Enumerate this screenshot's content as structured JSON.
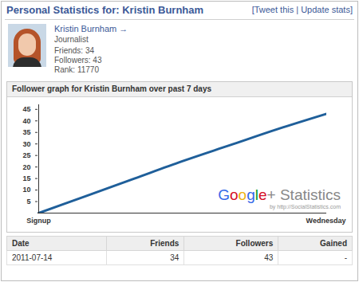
{
  "header": {
    "title": "Personal Statistics for: Kristin Burnham",
    "links": "[Tweet this | Update stats]"
  },
  "profile": {
    "name": "Kristin Burnham →",
    "occupation": "Journalist",
    "stats": [
      "Friends: 34",
      "Followers: 43",
      "Rank: 11770"
    ]
  },
  "chart_data": {
    "type": "line",
    "title": "Follower graph for Kristin Burnham over past 7 days",
    "categories": [
      "Signup",
      null,
      null,
      null,
      null,
      null,
      "Wednesday"
    ],
    "values": [
      0,
      7.5,
      15,
      22.5,
      29.5,
      36.5,
      43
    ],
    "color": "#1f5f9a",
    "ylim": [
      0,
      47
    ],
    "yticks": [
      5,
      10,
      15,
      20,
      25,
      30,
      35,
      40,
      45
    ],
    "grid": false,
    "annotations": [
      "Google+ Statistics",
      "by http://SocialStatistics.com"
    ]
  },
  "table": {
    "columns": [
      "Date",
      "Friends",
      "Followers",
      "Gained"
    ],
    "rows": [
      [
        "2011-07-14",
        34,
        43,
        "-"
      ]
    ]
  }
}
